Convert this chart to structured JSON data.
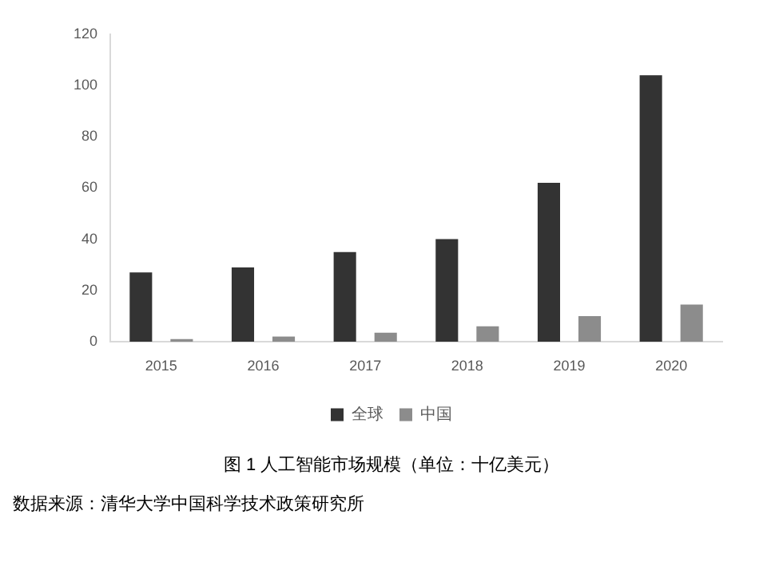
{
  "chart_data": {
    "type": "bar",
    "title": "图 1 人工智能市场规模（单位：十亿美元）",
    "categories": [
      "2015",
      "2016",
      "2017",
      "2018",
      "2019",
      "2020"
    ],
    "series": [
      {
        "name": "全球",
        "color": "#333333",
        "values": [
          27,
          29,
          35,
          40,
          62,
          104
        ]
      },
      {
        "name": "中国",
        "color": "#8c8c8c",
        "values": [
          1,
          2,
          3.5,
          6,
          10,
          14.5
        ]
      }
    ],
    "ylim": [
      0,
      120
    ],
    "yticks": [
      0,
      20,
      40,
      60,
      80,
      100,
      120
    ],
    "grid": false,
    "legend": "bottom",
    "annotations": [
      "数据来源：清华大学中国科学技术政策研究所"
    ]
  }
}
